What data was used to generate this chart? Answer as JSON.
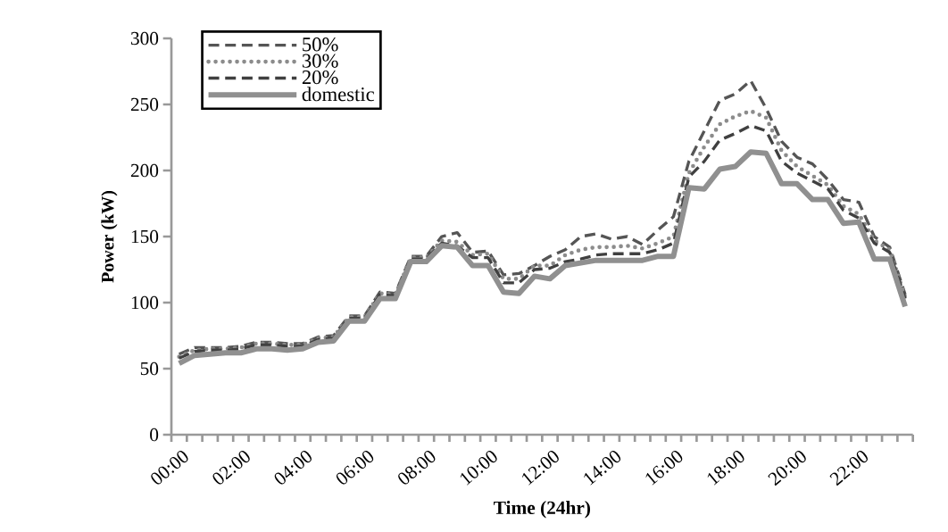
{
  "chart_data": {
    "type": "line",
    "xlabel": "Time (24hr)",
    "ylabel": "Power (kW)",
    "categories": [
      "00:00",
      null,
      null,
      null,
      "02:00",
      null,
      null,
      null,
      "04:00",
      null,
      null,
      null,
      "06:00",
      null,
      null,
      null,
      "08:00",
      null,
      null,
      null,
      "10:00",
      null,
      null,
      null,
      "12:00",
      null,
      null,
      null,
      "14:00",
      null,
      null,
      null,
      "16:00",
      null,
      null,
      null,
      "18:00",
      null,
      null,
      null,
      "20:00",
      null,
      null,
      null,
      "22:00",
      null,
      null,
      null
    ],
    "series": [
      {
        "name": "50%",
        "color": "#555555",
        "line_style": "dashed",
        "values": [
          61,
          66,
          66,
          66,
          67,
          70,
          70,
          69,
          69,
          74,
          75,
          90,
          90,
          108,
          107,
          135,
          135,
          150,
          153,
          138,
          139,
          121,
          122,
          128,
          135,
          140,
          150,
          152,
          148,
          150,
          144,
          155,
          165,
          207,
          230,
          253,
          258,
          268,
          247,
          222,
          210,
          205,
          193,
          178,
          176,
          150,
          142,
          106
        ]
      },
      {
        "name": "30%",
        "color": "#8c8c8c",
        "line_style": "dotted",
        "values": [
          59,
          64,
          65,
          65,
          66,
          69,
          69,
          68,
          68,
          73,
          74,
          89,
          89,
          107,
          106,
          134,
          134,
          147,
          146,
          136,
          137,
          118,
          118,
          128,
          128,
          136,
          140,
          142,
          142,
          143,
          141,
          145,
          150,
          198,
          218,
          235,
          241,
          245,
          240,
          215,
          203,
          196,
          189,
          173,
          167,
          147,
          140,
          104
        ]
      },
      {
        "name": "20%",
        "color": "#404040",
        "line_style": "dashed",
        "values": [
          58,
          63,
          64,
          64,
          65,
          68,
          68,
          67,
          67,
          72,
          73,
          88,
          88,
          106,
          105,
          133,
          133,
          145,
          143,
          134,
          134,
          115,
          115,
          125,
          126,
          131,
          133,
          136,
          137,
          137,
          137,
          140,
          145,
          195,
          207,
          223,
          228,
          234,
          230,
          207,
          198,
          192,
          186,
          170,
          164,
          145,
          138,
          103
        ]
      },
      {
        "name": "domestic",
        "color": "#909090",
        "line_style": "solid",
        "values": [
          54,
          60,
          61,
          62,
          62,
          65,
          65,
          64,
          65,
          70,
          71,
          86,
          86,
          103,
          103,
          131,
          131,
          143,
          142,
          128,
          128,
          108,
          107,
          120,
          118,
          128,
          130,
          132,
          132,
          132,
          132,
          135,
          135,
          187,
          186,
          201,
          203,
          214,
          213,
          190,
          190,
          178,
          178,
          160,
          161,
          133,
          133,
          97
        ]
      }
    ],
    "ylim": [
      0,
      300
    ],
    "yticks": [
      0,
      50,
      100,
      150,
      200,
      250,
      300
    ],
    "grid": false,
    "legend": "top left",
    "marker": "none"
  }
}
